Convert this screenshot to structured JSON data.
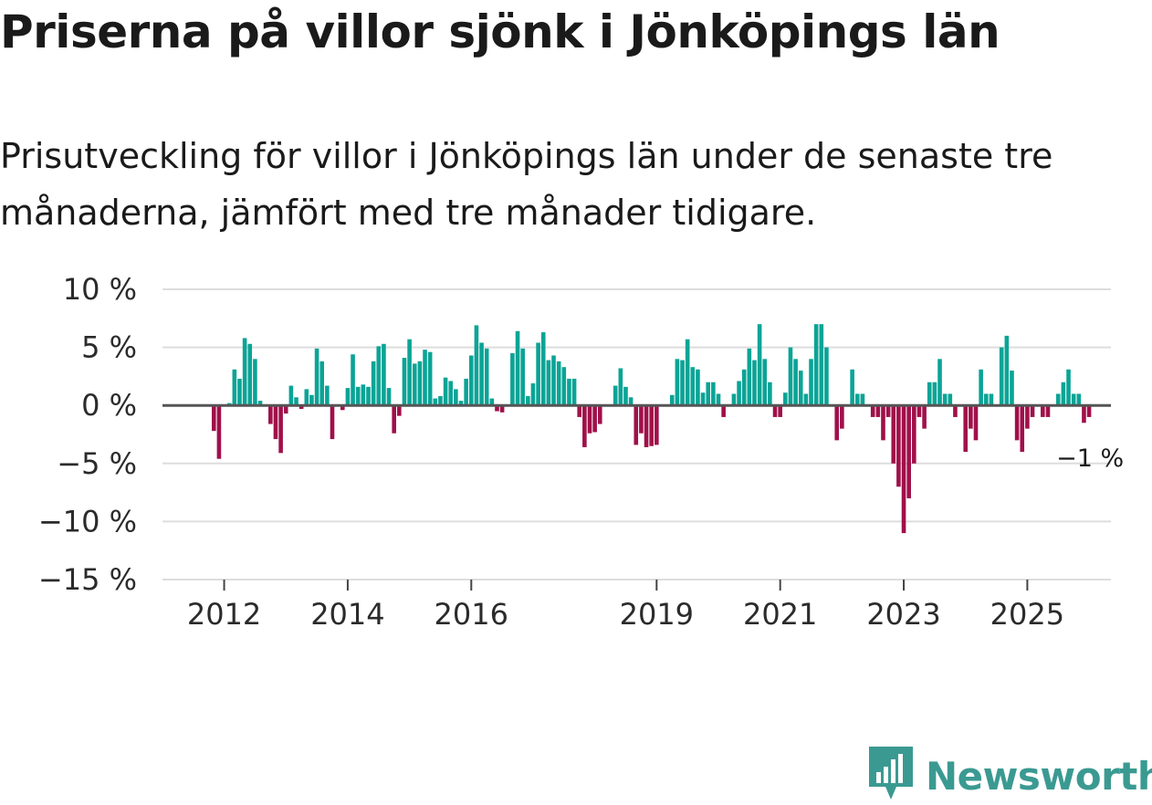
{
  "title": "Priserna på villor sjönk i Jönköpings län",
  "subtitle": "Prisutveckling för villor i Jönköpings län under de senaste tre månaderna, jämfört med tre månader tidigare.",
  "brand": "Newsworthy",
  "colors": {
    "positive": "#0aa496",
    "negative": "#a0104a",
    "grid": "#dddddd",
    "zero": "#555555",
    "brand": "#3a9a92"
  },
  "chart_data": {
    "type": "bar",
    "title": "Priserna på villor sjönk i Jönköpings län",
    "xlabel": "",
    "ylabel": "",
    "ylim": [
      -15,
      10
    ],
    "yticks": [
      10,
      5,
      0,
      -5,
      -10,
      -15
    ],
    "ytick_labels": [
      "10 %",
      "5 %",
      "0 %",
      "−5 %",
      "−10 %",
      "−15 %"
    ],
    "xticks": [
      "2012",
      "2014",
      "2016",
      "2019",
      "2021",
      "2023",
      "2025"
    ],
    "first_period": "2011-09",
    "frequency": "monthly",
    "values": [
      0,
      0,
      -2.2,
      -4.6,
      0,
      0.2,
      3.1,
      2.3,
      5.8,
      5.3,
      4.0,
      0.4,
      0,
      -1.6,
      -2.9,
      -4.1,
      -0.7,
      1.7,
      0.7,
      -0.3,
      1.4,
      0.9,
      4.9,
      3.8,
      1.7,
      -2.9,
      0,
      -0.4,
      1.5,
      4.4,
      1.6,
      1.8,
      1.6,
      3.8,
      5.1,
      5.3,
      1.5,
      -2.4,
      -0.9,
      4.1,
      5.7,
      3.6,
      3.8,
      4.8,
      4.6,
      0.6,
      0.8,
      2.4,
      2.1,
      1.4,
      0.4,
      2.3,
      4.3,
      6.9,
      5.4,
      4.9,
      0.6,
      -0.5,
      -0.6,
      0,
      4.5,
      6.4,
      4.9,
      0.8,
      1.9,
      5.4,
      6.3,
      3.9,
      4.3,
      3.8,
      3.3,
      2.3,
      2.3,
      -1.0,
      -3.6,
      -2.4,
      -2.3,
      -1.6,
      0,
      0,
      1.7,
      3.2,
      1.6,
      0.7,
      -3.4,
      -2.4,
      -3.6,
      -3.5,
      -3.4,
      0,
      0,
      0.9,
      4.0,
      3.9,
      5.7,
      3.3,
      3.1,
      1.1,
      2.0,
      2.0,
      1.0,
      -1.0,
      0,
      1.0,
      2.1,
      3.1,
      4.9,
      3.9,
      7.0,
      4.0,
      2.0,
      -1.0,
      -1.0,
      1.1,
      5.0,
      4.0,
      3.0,
      1.0,
      4.0,
      7.0,
      7.0,
      5.0,
      0,
      -3.0,
      -2.0,
      0,
      3.1,
      1.0,
      1.0,
      0,
      -1.0,
      -1.0,
      -3.0,
      -1.0,
      -5.0,
      -7.0,
      -11.0,
      -8.0,
      -5.0,
      -1.0,
      -2.0,
      2.0,
      2.0,
      4.0,
      1.0,
      1.0,
      -1.0,
      0,
      -4.0,
      -2.0,
      -3.0,
      3.1,
      1.0,
      1.0,
      0,
      5.0,
      6.0,
      3.0,
      -3.0,
      -4.0,
      -2.0,
      -1.0,
      0,
      -1.0,
      -1.0,
      0,
      1.0,
      2.0,
      3.1,
      1.0,
      1.0,
      -1.5,
      -1.0
    ],
    "annotation": {
      "text": "−1 %",
      "target": "last"
    },
    "legend": "none",
    "grid": true
  }
}
